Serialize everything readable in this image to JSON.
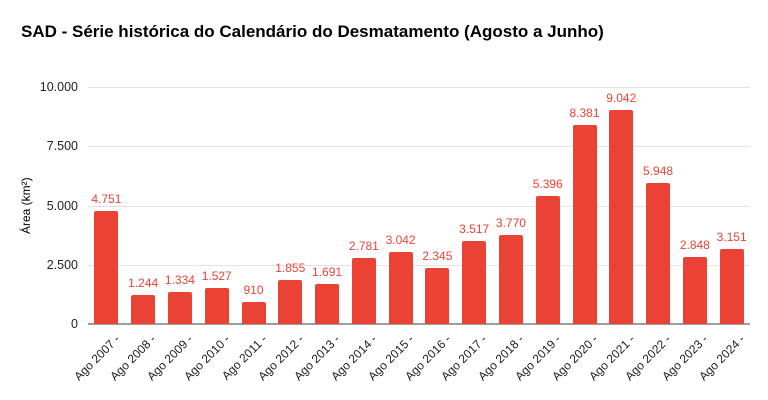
{
  "chart_data": {
    "type": "bar",
    "title": "SAD - Série histórica do Calendário do Desmatamento (Agosto a Junho)",
    "xlabel": "",
    "ylabel": "Área (km²)",
    "categories": [
      "Ago 2007 -",
      "Ago 2008 -",
      "Ago 2009 -",
      "Ago 2010 -",
      "Ago 2011 -",
      "Ago 2012 -",
      "Ago 2013 -",
      "Ago 2014 -",
      "Ago 2015 -",
      "Ago 2016 -",
      "Ago 2017 -",
      "Ago 2018 -",
      "Ago 2019 -",
      "Ago 2020 -",
      "Ago 2021 -",
      "Ago 2022 -",
      "Ago 2023 -",
      "Ago 2024 -"
    ],
    "values": [
      4751,
      1244,
      1334,
      1527,
      910,
      1855,
      1691,
      2781,
      3042,
      2345,
      3517,
      3770,
      5396,
      8381,
      9042,
      5948,
      2848,
      3151
    ],
    "value_labels": [
      "4.751",
      "1.244",
      "1.334",
      "1.527",
      "910",
      "1.855",
      "1.691",
      "2.781",
      "3.042",
      "2.345",
      "3.517",
      "3.770",
      "5.396",
      "8.381",
      "9.042",
      "5.948",
      "2.848",
      "3.151"
    ],
    "y_ticks": [
      {
        "value": 10000,
        "label": "10.000"
      },
      {
        "value": 7500,
        "label": "7.500"
      },
      {
        "value": 5000,
        "label": "5.000"
      },
      {
        "value": 2500,
        "label": "2.500"
      },
      {
        "value": 0,
        "label": "0"
      }
    ],
    "ylim": [
      0,
      10000
    ],
    "grid": true,
    "legend": "none",
    "colors": {
      "bar": "#EA4335",
      "value_label": "#EA4335",
      "axis_text": "#212121",
      "gridline": "#E3E3E3",
      "baseline": "#9E9E9E",
      "title": "#000000",
      "background": "#FFFFFF"
    }
  }
}
